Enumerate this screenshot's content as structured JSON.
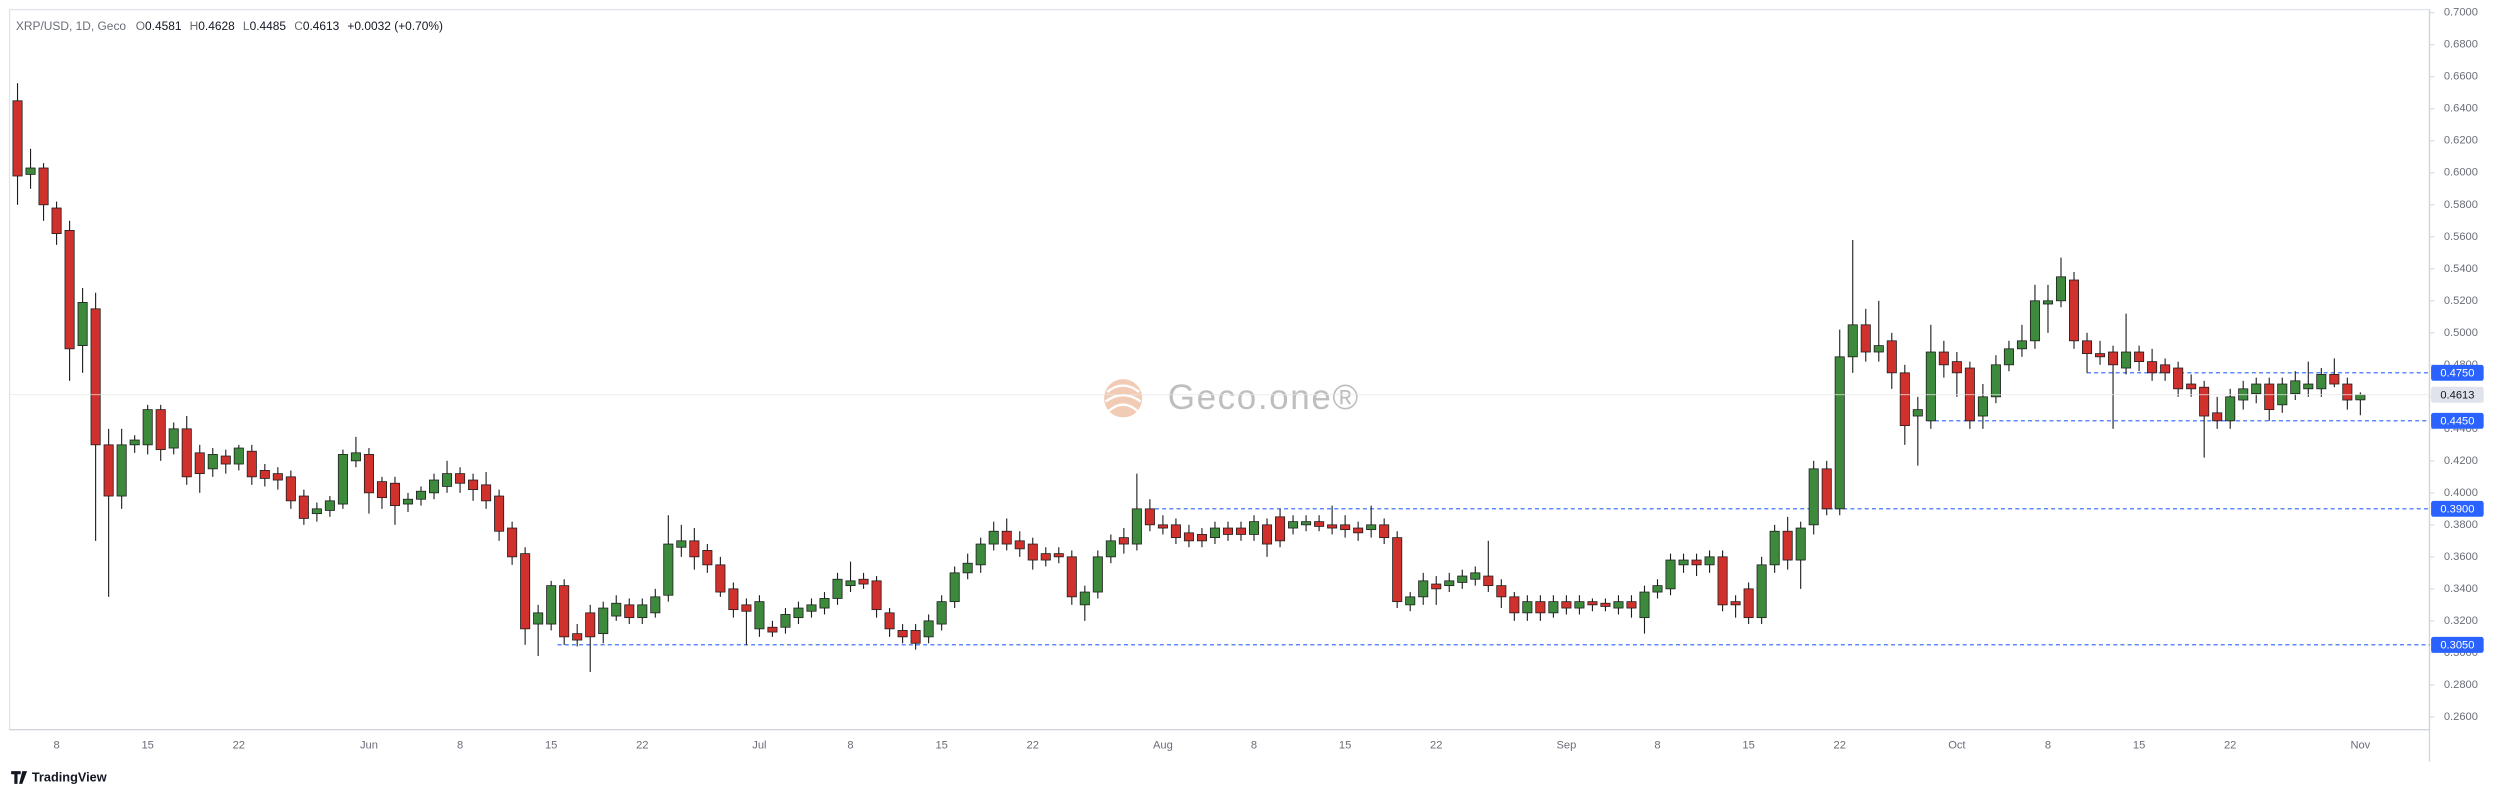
{
  "chart_data": {
    "type": "candlestick",
    "header": {
      "symbol": "XRP/USD, 1D, Geco",
      "fields": [
        {
          "key": "O",
          "value": "0.4581"
        },
        {
          "key": "H",
          "value": "0.4628"
        },
        {
          "key": "L",
          "value": "0.4485"
        },
        {
          "key": "C",
          "value": "0.4613"
        }
      ],
      "change": "+0.0032 (+0.70%)"
    },
    "watermark": "Geco.one®",
    "footer": "TradingView",
    "categories": [
      null,
      null,
      null,
      "8",
      null,
      null,
      null,
      null,
      null,
      null,
      "15",
      null,
      null,
      null,
      null,
      null,
      null,
      "22",
      null,
      null,
      null,
      null,
      null,
      null,
      null,
      null,
      null,
      "Jun",
      null,
      null,
      null,
      null,
      null,
      null,
      "8",
      null,
      null,
      null,
      null,
      null,
      null,
      "15",
      null,
      null,
      null,
      null,
      null,
      null,
      "22",
      null,
      null,
      null,
      null,
      null,
      null,
      null,
      null,
      "Jul",
      null,
      null,
      null,
      null,
      null,
      null,
      "8",
      null,
      null,
      null,
      null,
      null,
      null,
      "15",
      null,
      null,
      null,
      null,
      null,
      null,
      "22",
      null,
      null,
      null,
      null,
      null,
      null,
      null,
      null,
      null,
      "Aug",
      null,
      null,
      null,
      null,
      null,
      null,
      "8",
      null,
      null,
      null,
      null,
      null,
      null,
      "15",
      null,
      null,
      null,
      null,
      null,
      null,
      "22",
      null,
      null,
      null,
      null,
      null,
      null,
      null,
      null,
      null,
      "Sep",
      null,
      null,
      null,
      null,
      null,
      null,
      "8",
      null,
      null,
      null,
      null,
      null,
      null,
      "15",
      null,
      null,
      null,
      null,
      null,
      null,
      "22",
      null,
      null,
      null,
      null,
      null,
      null,
      null,
      null,
      "Oct",
      null,
      null,
      null,
      null,
      null,
      null,
      "8",
      null,
      null,
      null,
      null,
      null,
      null,
      "15",
      null,
      null,
      null,
      null,
      null,
      null,
      "22",
      null,
      null,
      null,
      null,
      null,
      null,
      null,
      null,
      null,
      "Nov"
    ],
    "open": [
      0.645,
      0.599,
      0.603,
      0.578,
      0.564,
      0.492,
      0.515,
      0.43,
      0.398,
      0.43,
      0.43,
      0.452,
      0.428,
      0.44,
      0.425,
      0.415,
      0.423,
      0.418,
      0.426,
      0.414,
      0.412,
      0.41,
      0.398,
      0.387,
      0.389,
      0.393,
      0.42,
      0.424,
      0.407,
      0.406,
      0.393,
      0.396,
      0.4,
      0.404,
      0.412,
      0.408,
      0.405,
      0.398,
      0.378,
      0.362,
      0.318,
      0.318,
      0.342,
      0.312,
      0.325,
      0.312,
      0.323,
      0.33,
      0.322,
      0.325,
      0.336,
      0.366,
      0.37,
      0.364,
      0.355,
      0.34,
      0.33,
      0.315,
      0.316,
      0.316,
      0.322,
      0.326,
      0.328,
      0.334,
      0.342,
      0.346,
      0.345,
      0.325,
      0.314,
      0.314,
      0.31,
      0.318,
      0.332,
      0.35,
      0.355,
      0.368,
      0.376,
      0.37,
      0.368,
      0.362,
      0.362,
      0.36,
      0.33,
      0.338,
      0.36,
      0.372,
      0.368,
      0.39,
      0.38,
      0.38,
      0.375,
      0.374,
      0.372,
      0.378,
      0.378,
      0.374,
      0.38,
      0.385,
      0.378,
      0.38,
      0.382,
      0.38,
      0.38,
      0.378,
      0.377,
      0.38,
      0.372,
      0.33,
      0.335,
      0.343,
      0.342,
      0.344,
      0.346,
      0.348,
      0.342,
      0.335,
      0.325,
      0.332,
      0.325,
      0.332,
      0.328,
      0.332,
      0.331,
      0.328,
      0.332,
      0.322,
      0.338,
      0.34,
      0.355,
      0.358,
      0.355,
      0.36,
      0.332,
      0.34,
      0.322,
      0.355,
      0.376,
      0.358,
      0.38,
      0.415,
      0.39,
      0.485,
      0.505,
      0.488,
      0.495,
      0.475,
      0.448,
      0.445,
      0.488,
      0.482,
      0.478,
      0.448,
      0.46,
      0.48,
      0.49,
      0.495,
      0.518,
      0.52,
      0.533,
      0.495,
      0.487,
      0.488,
      0.478,
      0.488,
      0.482,
      0.48,
      0.478,
      0.468,
      0.466,
      0.45,
      0.445,
      0.458,
      0.462,
      0.468,
      0.455,
      0.462,
      0.465,
      0.465,
      0.474,
      0.468,
      0.4581
    ],
    "high": [
      0.656,
      0.615,
      0.606,
      0.582,
      0.57,
      0.528,
      0.525,
      0.44,
      0.44,
      0.436,
      0.455,
      0.455,
      0.444,
      0.448,
      0.43,
      0.428,
      0.427,
      0.43,
      0.43,
      0.418,
      0.416,
      0.414,
      0.402,
      0.394,
      0.398,
      0.427,
      0.435,
      0.428,
      0.41,
      0.41,
      0.4,
      0.404,
      0.412,
      0.42,
      0.416,
      0.412,
      0.413,
      0.402,
      0.382,
      0.366,
      0.33,
      0.345,
      0.346,
      0.318,
      0.33,
      0.332,
      0.336,
      0.334,
      0.334,
      0.34,
      0.386,
      0.38,
      0.378,
      0.368,
      0.36,
      0.344,
      0.334,
      0.336,
      0.32,
      0.328,
      0.332,
      0.334,
      0.338,
      0.35,
      0.357,
      0.35,
      0.348,
      0.328,
      0.318,
      0.318,
      0.324,
      0.336,
      0.354,
      0.362,
      0.372,
      0.382,
      0.384,
      0.376,
      0.372,
      0.366,
      0.366,
      0.364,
      0.342,
      0.364,
      0.374,
      0.378,
      0.412,
      0.396,
      0.386,
      0.384,
      0.38,
      0.378,
      0.382,
      0.382,
      0.382,
      0.386,
      0.384,
      0.39,
      0.386,
      0.386,
      0.386,
      0.392,
      0.386,
      0.382,
      0.392,
      0.384,
      0.376,
      0.338,
      0.35,
      0.348,
      0.35,
      0.352,
      0.354,
      0.37,
      0.346,
      0.338,
      0.336,
      0.336,
      0.336,
      0.336,
      0.336,
      0.334,
      0.334,
      0.336,
      0.336,
      0.342,
      0.346,
      0.362,
      0.362,
      0.362,
      0.364,
      0.364,
      0.336,
      0.344,
      0.36,
      0.38,
      0.385,
      0.382,
      0.42,
      0.42,
      0.502,
      0.558,
      0.515,
      0.52,
      0.5,
      0.48,
      0.46,
      0.505,
      0.495,
      0.488,
      0.482,
      0.468,
      0.486,
      0.495,
      0.505,
      0.53,
      0.53,
      0.547,
      0.538,
      0.5,
      0.495,
      0.492,
      0.512,
      0.492,
      0.49,
      0.484,
      0.482,
      0.474,
      0.47,
      0.46,
      0.465,
      0.47,
      0.472,
      0.472,
      0.472,
      0.476,
      0.482,
      0.478,
      0.484,
      0.472,
      0.4628
    ],
    "low": [
      0.58,
      0.59,
      0.57,
      0.555,
      0.47,
      0.475,
      0.37,
      0.335,
      0.39,
      0.425,
      0.424,
      0.42,
      0.424,
      0.405,
      0.4,
      0.41,
      0.412,
      0.414,
      0.405,
      0.404,
      0.402,
      0.39,
      0.38,
      0.382,
      0.385,
      0.39,
      0.416,
      0.387,
      0.39,
      0.38,
      0.388,
      0.392,
      0.396,
      0.4,
      0.4,
      0.395,
      0.39,
      0.37,
      0.355,
      0.305,
      0.298,
      0.314,
      0.305,
      0.304,
      0.288,
      0.306,
      0.32,
      0.318,
      0.318,
      0.322,
      0.332,
      0.36,
      0.352,
      0.35,
      0.335,
      0.322,
      0.305,
      0.31,
      0.31,
      0.312,
      0.318,
      0.322,
      0.324,
      0.33,
      0.338,
      0.34,
      0.322,
      0.31,
      0.306,
      0.302,
      0.306,
      0.314,
      0.328,
      0.346,
      0.35,
      0.364,
      0.364,
      0.36,
      0.352,
      0.354,
      0.356,
      0.33,
      0.32,
      0.334,
      0.356,
      0.362,
      0.364,
      0.376,
      0.374,
      0.368,
      0.366,
      0.366,
      0.368,
      0.37,
      0.37,
      0.37,
      0.36,
      0.366,
      0.374,
      0.376,
      0.376,
      0.374,
      0.372,
      0.37,
      0.372,
      0.368,
      0.328,
      0.326,
      0.33,
      0.33,
      0.338,
      0.34,
      0.342,
      0.338,
      0.328,
      0.32,
      0.32,
      0.32,
      0.322,
      0.324,
      0.324,
      0.326,
      0.326,
      0.324,
      0.322,
      0.312,
      0.334,
      0.336,
      0.35,
      0.348,
      0.35,
      0.326,
      0.322,
      0.318,
      0.318,
      0.35,
      0.352,
      0.34,
      0.374,
      0.386,
      0.386,
      0.475,
      0.482,
      0.482,
      0.465,
      0.43,
      0.417,
      0.44,
      0.472,
      0.46,
      0.44,
      0.44,
      0.456,
      0.476,
      0.485,
      0.49,
      0.5,
      0.516,
      0.49,
      0.475,
      0.48,
      0.44,
      0.474,
      0.476,
      0.47,
      0.47,
      0.46,
      0.46,
      0.422,
      0.44,
      0.44,
      0.452,
      0.456,
      0.445,
      0.45,
      0.458,
      0.46,
      0.46,
      0.466,
      0.452,
      0.4485
    ],
    "close": [
      0.598,
      0.603,
      0.58,
      0.562,
      0.49,
      0.519,
      0.43,
      0.398,
      0.43,
      0.433,
      0.452,
      0.427,
      0.44,
      0.41,
      0.412,
      0.424,
      0.418,
      0.428,
      0.41,
      0.409,
      0.408,
      0.395,
      0.384,
      0.39,
      0.395,
      0.424,
      0.425,
      0.4,
      0.397,
      0.392,
      0.396,
      0.401,
      0.408,
      0.412,
      0.406,
      0.402,
      0.395,
      0.376,
      0.36,
      0.315,
      0.325,
      0.342,
      0.31,
      0.308,
      0.31,
      0.328,
      0.331,
      0.322,
      0.33,
      0.335,
      0.368,
      0.37,
      0.36,
      0.355,
      0.338,
      0.327,
      0.326,
      0.332,
      0.313,
      0.324,
      0.328,
      0.33,
      0.334,
      0.346,
      0.345,
      0.343,
      0.327,
      0.315,
      0.31,
      0.306,
      0.32,
      0.332,
      0.35,
      0.356,
      0.368,
      0.376,
      0.368,
      0.365,
      0.358,
      0.358,
      0.36,
      0.335,
      0.338,
      0.36,
      0.37,
      0.368,
      0.39,
      0.38,
      0.378,
      0.372,
      0.37,
      0.37,
      0.378,
      0.374,
      0.374,
      0.382,
      0.368,
      0.37,
      0.382,
      0.382,
      0.379,
      0.378,
      0.377,
      0.375,
      0.38,
      0.372,
      0.332,
      0.335,
      0.345,
      0.34,
      0.345,
      0.348,
      0.35,
      0.342,
      0.335,
      0.325,
      0.332,
      0.325,
      0.332,
      0.328,
      0.332,
      0.33,
      0.329,
      0.332,
      0.328,
      0.338,
      0.342,
      0.358,
      0.358,
      0.355,
      0.36,
      0.33,
      0.33,
      0.322,
      0.355,
      0.376,
      0.358,
      0.378,
      0.415,
      0.39,
      0.485,
      0.505,
      0.488,
      0.492,
      0.475,
      0.442,
      0.452,
      0.488,
      0.48,
      0.475,
      0.445,
      0.46,
      0.48,
      0.49,
      0.495,
      0.52,
      0.52,
      0.535,
      0.495,
      0.487,
      0.485,
      0.48,
      0.488,
      0.482,
      0.475,
      0.475,
      0.465,
      0.465,
      0.448,
      0.445,
      0.46,
      0.465,
      0.468,
      0.452,
      0.468,
      0.47,
      0.468,
      0.474,
      0.468,
      0.458,
      0.4613
    ],
    "up_color": "#3d8a3d",
    "down_color": "#d0312d",
    "edge_color": "#1e1e1e",
    "ylim": [
      0.252,
      0.702
    ],
    "yticks": [
      {
        "value": 0.26,
        "label": "0.2600"
      },
      {
        "value": 0.28,
        "label": "0.2800"
      },
      {
        "value": 0.3,
        "label": "0.3000"
      },
      {
        "value": 0.32,
        "label": "0.3200"
      },
      {
        "value": 0.34,
        "label": "0.3400"
      },
      {
        "value": 0.36,
        "label": "0.3600"
      },
      {
        "value": 0.38,
        "label": "0.3800"
      },
      {
        "value": 0.4,
        "label": "0.4000"
      },
      {
        "value": 0.42,
        "label": "0.4200"
      },
      {
        "value": 0.44,
        "label": "0.4400"
      },
      {
        "value": 0.46,
        "label": "0.4600"
      },
      {
        "value": 0.48,
        "label": "0.4800"
      },
      {
        "value": 0.5,
        "label": "0.5000"
      },
      {
        "value": 0.52,
        "label": "0.5200"
      },
      {
        "value": 0.54,
        "label": "0.5400"
      },
      {
        "value": 0.56,
        "label": "0.5600"
      },
      {
        "value": 0.58,
        "label": "0.5800"
      },
      {
        "value": 0.6,
        "label": "0.6000"
      },
      {
        "value": 0.62,
        "label": "0.6200"
      },
      {
        "value": 0.64,
        "label": "0.6400"
      },
      {
        "value": 0.66,
        "label": "0.6600"
      },
      {
        "value": 0.68,
        "label": "0.6800"
      },
      {
        "value": 0.7,
        "label": "0.7000"
      }
    ],
    "grid": false,
    "levels": [
      {
        "value": 0.475,
        "label": "0.4750"
      },
      {
        "value": 0.445,
        "label": "0.4450"
      },
      {
        "value": 0.39,
        "label": "0.3900"
      },
      {
        "value": 0.305,
        "label": "0.3050"
      }
    ],
    "level_color": "#2962ff",
    "last_price": {
      "value": 0.4613,
      "label": "0.4613"
    }
  }
}
